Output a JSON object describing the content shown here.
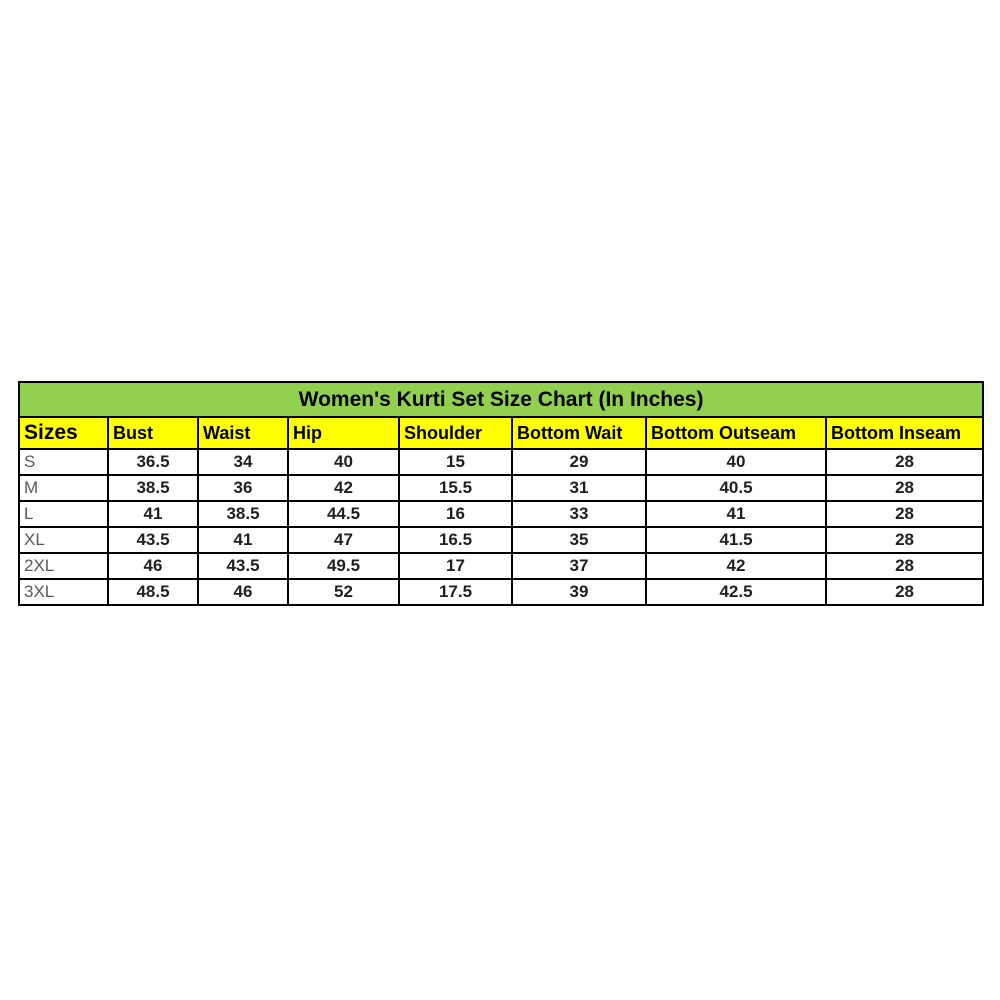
{
  "colors": {
    "title_bg": "#92D050",
    "header_bg": "#FFFF00",
    "border": "#000000",
    "title_text": "#000000",
    "size_label_text": "#595959",
    "value_text": "#1f1f24"
  },
  "chart_data": {
    "type": "table",
    "title": "Women's Kurti Set Size Chart (In Inches)",
    "columns": [
      "Sizes",
      "Bust",
      "Waist",
      "Hip",
      "Shoulder",
      "Bottom Wait",
      "Bottom Outseam",
      "Bottom Inseam"
    ],
    "rows": [
      [
        "S",
        "36.5",
        "34",
        "40",
        "15",
        "29",
        "40",
        "28"
      ],
      [
        "M",
        "38.5",
        "36",
        "42",
        "15.5",
        "31",
        "40.5",
        "28"
      ],
      [
        "L",
        "41",
        "38.5",
        "44.5",
        "16",
        "33",
        "41",
        "28"
      ],
      [
        "XL",
        "43.5",
        "41",
        "47",
        "16.5",
        "35",
        "41.5",
        "28"
      ],
      [
        "2XL",
        "46",
        "43.5",
        "49.5",
        "17",
        "37",
        "42",
        "28"
      ],
      [
        "3XL",
        "48.5",
        "46",
        "52",
        "17.5",
        "39",
        "42.5",
        "28"
      ]
    ],
    "units": "Inches",
    "layout": {
      "grid": true,
      "header_align": "left",
      "value_align": "center"
    }
  }
}
